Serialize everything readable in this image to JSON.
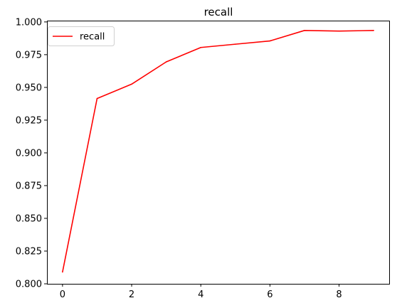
{
  "chart_data": {
    "type": "line",
    "title": "recall",
    "xlabel": "",
    "ylabel": "",
    "xlim": [
      -0.45,
      9.45
    ],
    "ylim": [
      0.8,
      1.001
    ],
    "x": [
      0,
      1,
      2,
      3,
      4,
      5,
      6,
      7,
      8,
      9
    ],
    "xticks": [
      0,
      2,
      4,
      6,
      8
    ],
    "xtick_labels": [
      "0",
      "2",
      "4",
      "6",
      "8"
    ],
    "yticks": [
      0.8,
      0.825,
      0.85,
      0.875,
      0.9,
      0.925,
      0.95,
      0.975,
      1.0
    ],
    "ytick_labels": [
      "0.800",
      "0.825",
      "0.850",
      "0.875",
      "0.900",
      "0.925",
      "0.950",
      "0.975",
      "1.000"
    ],
    "series": [
      {
        "name": "recall",
        "color": "#ff0000",
        "values": [
          0.809,
          0.9415,
          0.9525,
          0.9695,
          0.9805,
          0.983,
          0.9855,
          0.9935,
          0.993,
          0.9935
        ]
      }
    ],
    "grid": false,
    "legend": "top-left"
  }
}
